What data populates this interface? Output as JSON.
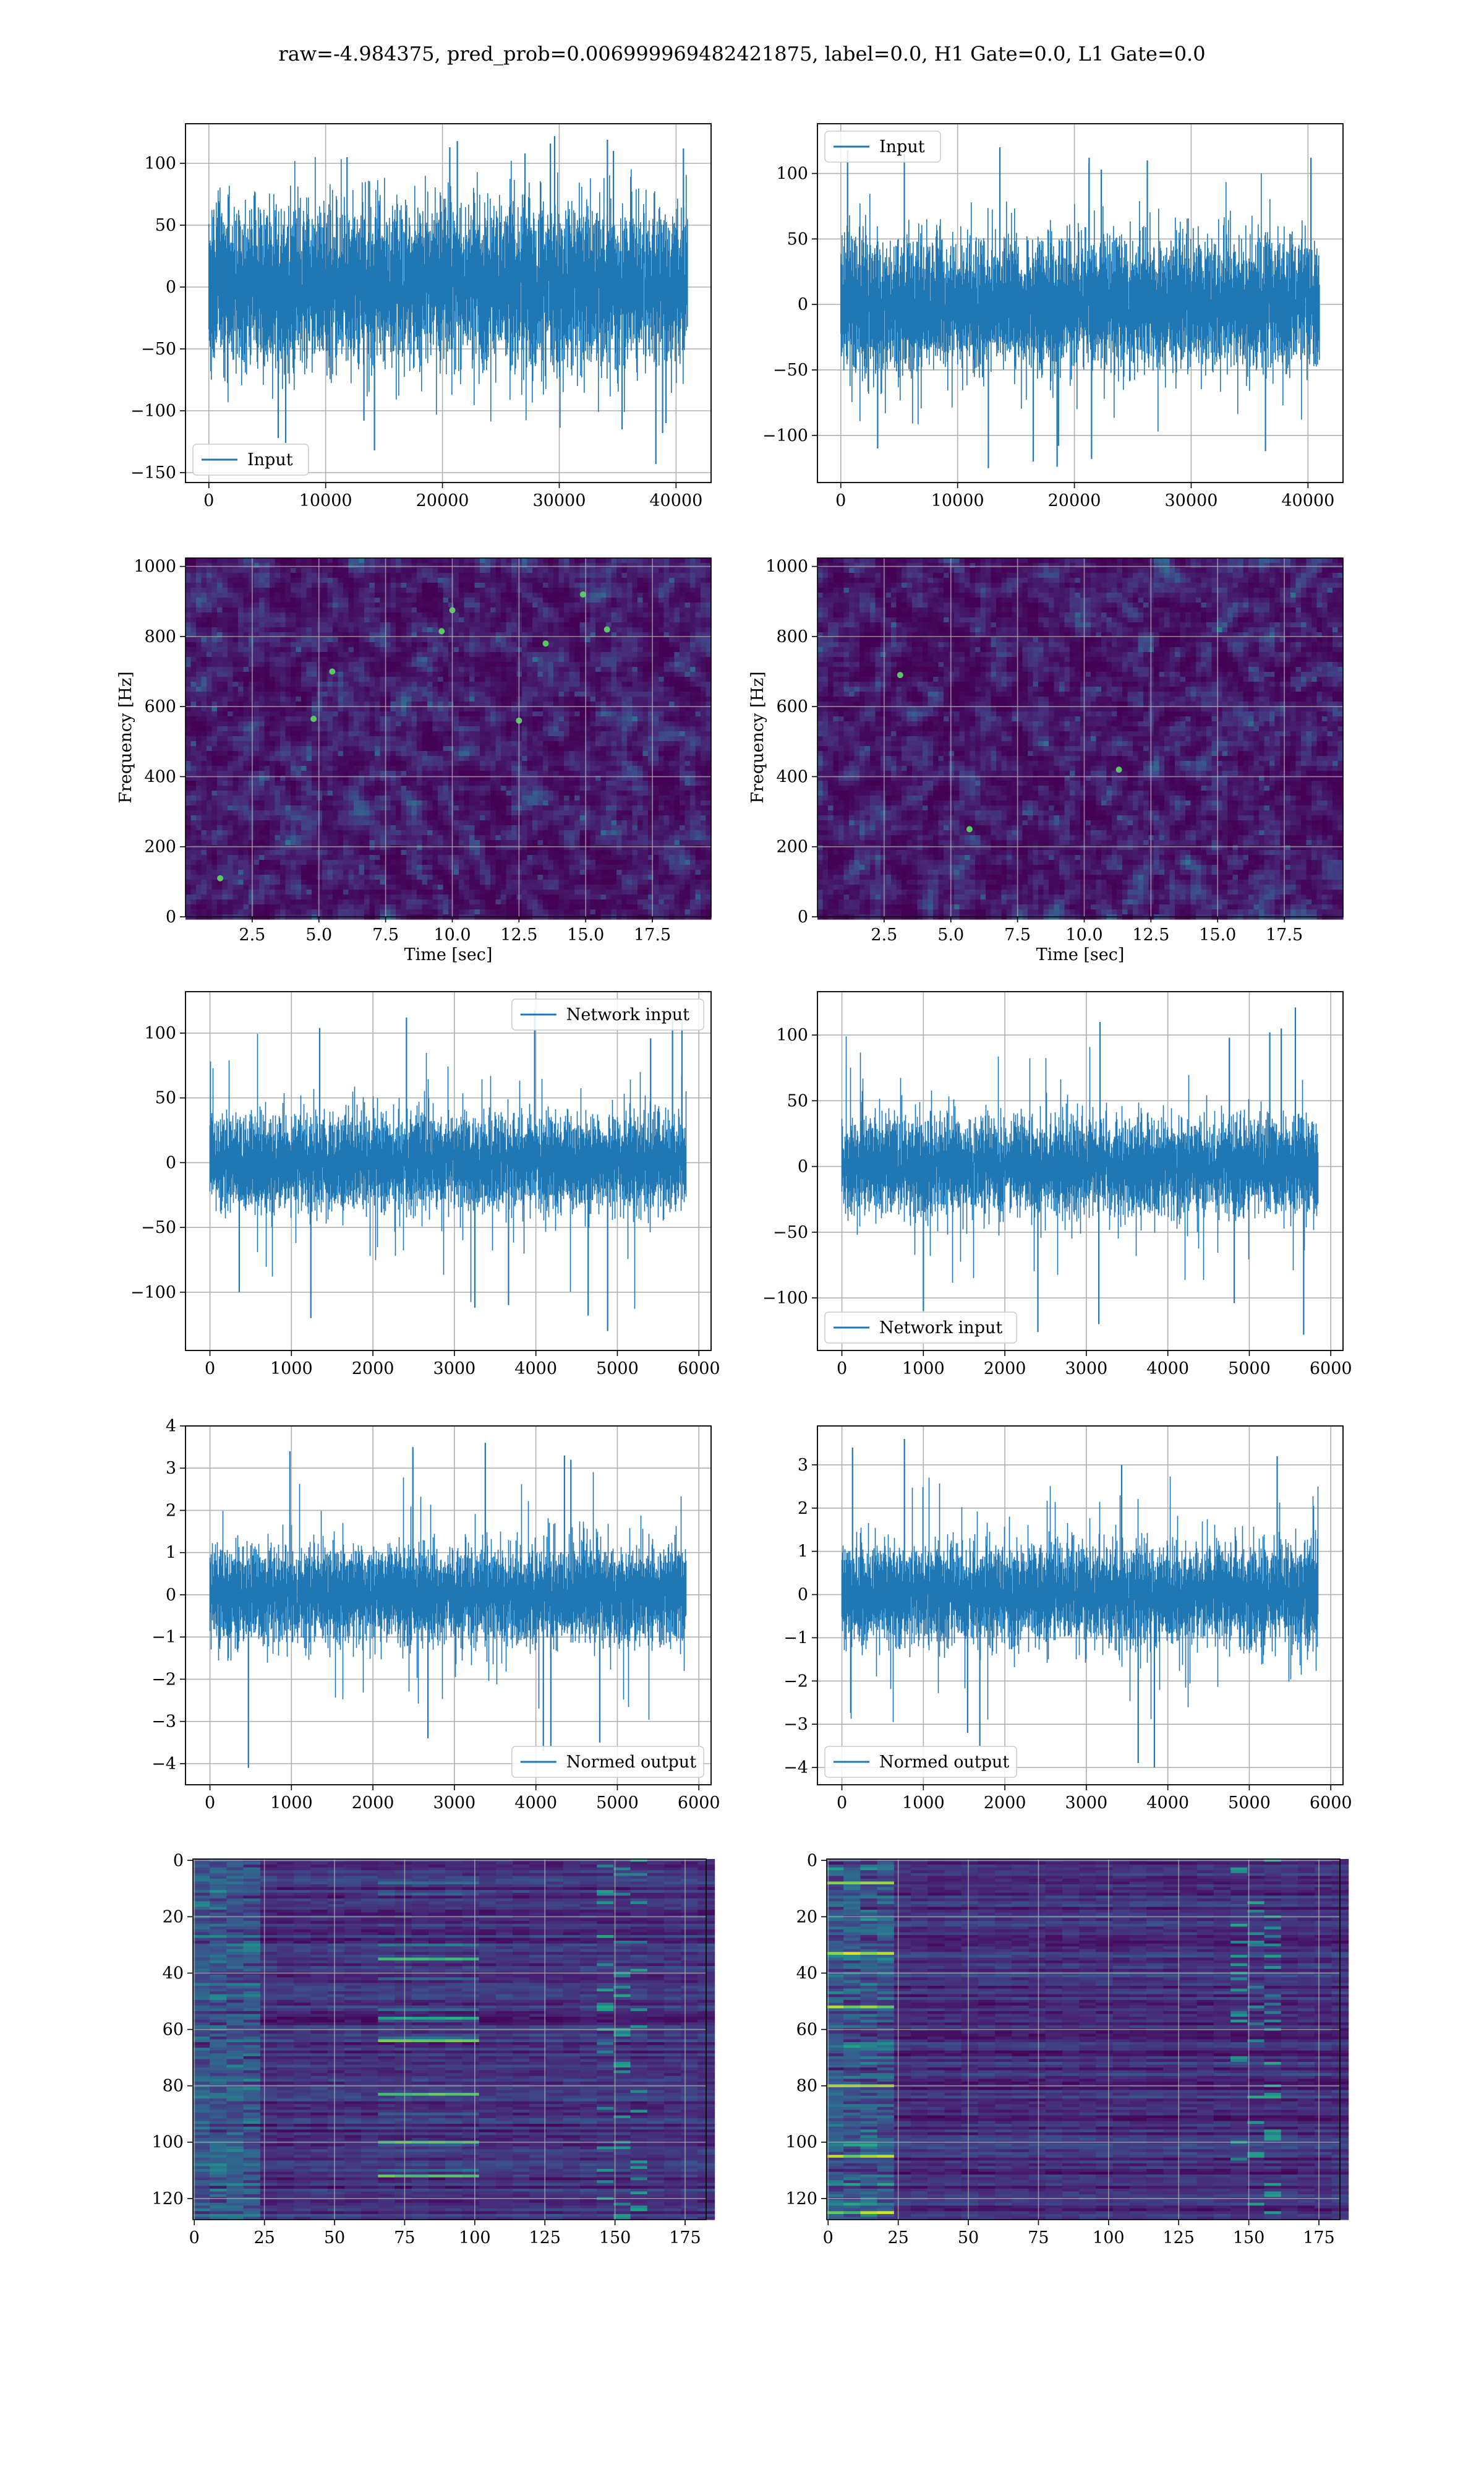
{
  "figure": {
    "title": "raw=-4.984375, pred_prob=0.006999969482421875, label=0.0, H1 Gate=0.0, L1 Gate=0.0"
  },
  "colors": {
    "line": "#1f77b4",
    "grid": "#b0b0b0",
    "viridis_dark": "#440154",
    "viridis_mid": "#21918c",
    "viridis_bright": "#fde725"
  },
  "chart_data": [
    {
      "id": "h1-input",
      "type": "line",
      "title": "",
      "xlabel": "",
      "ylabel": "",
      "xlim": [
        -2000,
        43000
      ],
      "ylim": [
        -158,
        132
      ],
      "xticks": [
        0,
        10000,
        20000,
        30000,
        40000
      ],
      "xtick_labels": [
        "0",
        "10000",
        "20000",
        "30000",
        "40000"
      ],
      "yticks": [
        -150,
        -100,
        -50,
        0,
        50,
        100
      ],
      "ytick_labels": [
        "−150",
        "−100",
        "−50",
        "0",
        "50",
        "100"
      ],
      "grid": true,
      "legend": {
        "placement": "lower-left",
        "entries": [
          "Input"
        ]
      },
      "series": [
        {
          "name": "Input",
          "x_range": [
            0,
            40960
          ],
          "envelope": {
            "core_abs": 72,
            "max": 122,
            "min": -143
          },
          "peak_values": [
            105,
            122,
            118,
            110,
            112,
            119,
            116,
            108,
            113,
            -108,
            -122,
            -143,
            -132,
            -115,
            -118,
            -126,
            -110
          ]
        }
      ]
    },
    {
      "id": "l1-input",
      "type": "line",
      "title": "",
      "xlabel": "",
      "ylabel": "",
      "xlim": [
        -2000,
        43000
      ],
      "ylim": [
        -136,
        138
      ],
      "xticks": [
        0,
        10000,
        20000,
        30000,
        40000
      ],
      "xtick_labels": [
        "0",
        "10000",
        "20000",
        "30000",
        "40000"
      ],
      "yticks": [
        -100,
        -50,
        0,
        50,
        100
      ],
      "ytick_labels": [
        "−100",
        "−50",
        "0",
        "50",
        "100"
      ],
      "grid": true,
      "legend": {
        "placement": "upper-left",
        "entries": [
          "Input"
        ]
      },
      "series": [
        {
          "name": "Input",
          "x_range": [
            0,
            40960
          ],
          "envelope": {
            "core_abs": 55,
            "max": 120,
            "min": -125
          },
          "peak_values": [
            110,
            112,
            115,
            120,
            108,
            103,
            118,
            112,
            -110,
            -124,
            -125,
            -118,
            -112,
            -120,
            -108
          ]
        }
      ]
    },
    {
      "id": "h1-spectrogram",
      "type": "heatmap",
      "title": "",
      "xlabel": "Time [sec]",
      "ylabel": "Frequency [Hz]",
      "xlim": [
        0,
        19.7
      ],
      "ylim": [
        0,
        1024
      ],
      "xticks": [
        2.5,
        5.0,
        7.5,
        10.0,
        12.5,
        15.0,
        17.5
      ],
      "xtick_labels": [
        "2.5",
        "5.0",
        "7.5",
        "10.0",
        "12.5",
        "15.0",
        "17.5"
      ],
      "yticks": [
        0,
        200,
        400,
        600,
        800,
        1000
      ],
      "ytick_labels": [
        "0",
        "200",
        "400",
        "600",
        "800",
        "1000"
      ],
      "grid": true,
      "colormap": "viridis",
      "hot_spots": [
        [
          14.9,
          920
        ],
        [
          10.0,
          875
        ],
        [
          9.6,
          815
        ],
        [
          4.8,
          565
        ],
        [
          12.5,
          560
        ],
        [
          13.5,
          780
        ],
        [
          1.3,
          110
        ],
        [
          15.8,
          820
        ],
        [
          5.5,
          700
        ]
      ]
    },
    {
      "id": "l1-spectrogram",
      "type": "heatmap",
      "title": "",
      "xlabel": "Time [sec]",
      "ylabel": "Frequency [Hz]",
      "xlim": [
        0,
        19.7
      ],
      "ylim": [
        0,
        1024
      ],
      "xticks": [
        2.5,
        5.0,
        7.5,
        10.0,
        12.5,
        15.0,
        17.5
      ],
      "xtick_labels": [
        "2.5",
        "5.0",
        "7.5",
        "10.0",
        "12.5",
        "15.0",
        "17.5"
      ],
      "yticks": [
        0,
        200,
        400,
        600,
        800,
        1000
      ],
      "ytick_labels": [
        "0",
        "200",
        "400",
        "600",
        "800",
        "1000"
      ],
      "grid": true,
      "colormap": "viridis",
      "hot_spots": [
        [
          5.7,
          250
        ],
        [
          11.3,
          420
        ],
        [
          3.1,
          690
        ]
      ]
    },
    {
      "id": "h1-network-input",
      "type": "line",
      "title": "",
      "xlabel": "",
      "ylabel": "",
      "xlim": [
        -300,
        6150
      ],
      "ylim": [
        -145,
        132
      ],
      "xticks": [
        0,
        1000,
        2000,
        3000,
        4000,
        5000,
        6000
      ],
      "xtick_labels": [
        "0",
        "1000",
        "2000",
        "3000",
        "4000",
        "5000",
        "6000"
      ],
      "yticks": [
        -100,
        -50,
        0,
        50,
        100
      ],
      "ytick_labels": [
        "−100",
        "−50",
        "0",
        "50",
        "100"
      ],
      "grid": true,
      "legend": {
        "placement": "upper-right",
        "entries": [
          "Network input"
        ]
      },
      "series": [
        {
          "name": "Network input",
          "x_range": [
            0,
            5840
          ],
          "envelope": {
            "core_abs": 40,
            "max": 118,
            "min": -130
          },
          "peak_values": [
            108,
            118,
            116,
            104,
            112,
            96,
            -130,
            -120,
            -118,
            -112,
            -110,
            -100
          ]
        }
      ]
    },
    {
      "id": "l1-network-input",
      "type": "line",
      "title": "",
      "xlabel": "",
      "ylabel": "",
      "xlim": [
        -300,
        6150
      ],
      "ylim": [
        -140,
        133
      ],
      "xticks": [
        0,
        1000,
        2000,
        3000,
        4000,
        5000,
        6000
      ],
      "xtick_labels": [
        "0",
        "1000",
        "2000",
        "3000",
        "4000",
        "5000",
        "6000"
      ],
      "yticks": [
        -100,
        -50,
        0,
        50,
        100
      ],
      "ytick_labels": [
        "−100",
        "−50",
        "0",
        "50",
        "100"
      ],
      "grid": true,
      "legend": {
        "placement": "lower-left",
        "entries": [
          "Network input"
        ]
      },
      "series": [
        {
          "name": "Network input",
          "x_range": [
            0,
            5840
          ],
          "envelope": {
            "core_abs": 40,
            "max": 121,
            "min": -128
          },
          "peak_values": [
            121,
            110,
            105,
            102,
            98,
            -128,
            -126,
            -120,
            -110,
            -104
          ]
        }
      ]
    },
    {
      "id": "h1-normed-output",
      "type": "line",
      "title": "",
      "xlabel": "",
      "ylabel": "",
      "xlim": [
        -300,
        6150
      ],
      "ylim": [
        -4.5,
        4.0
      ],
      "xticks": [
        0,
        1000,
        2000,
        3000,
        4000,
        5000,
        6000
      ],
      "xtick_labels": [
        "0",
        "1000",
        "2000",
        "3000",
        "4000",
        "5000",
        "6000"
      ],
      "yticks": [
        -4,
        -3,
        -2,
        -1,
        0,
        1,
        2,
        3,
        4
      ],
      "ytick_labels": [
        "−4",
        "−3",
        "−2",
        "−1",
        "0",
        "1",
        "2",
        "3",
        "4"
      ],
      "grid": true,
      "legend": {
        "placement": "lower-right",
        "entries": [
          "Normed output"
        ]
      },
      "series": [
        {
          "name": "Normed output",
          "x_range": [
            0,
            5840
          ],
          "envelope": {
            "core_abs": 1.25,
            "max": 3.6,
            "min": -4.1
          },
          "peak_values": [
            3.5,
            3.6,
            3.4,
            3.3,
            3.2,
            -4.1,
            -3.7,
            -3.6,
            -3.5,
            -3.4
          ]
        }
      ]
    },
    {
      "id": "l1-normed-output",
      "type": "line",
      "title": "",
      "xlabel": "",
      "ylabel": "",
      "xlim": [
        -300,
        6150
      ],
      "ylim": [
        -4.4,
        3.9
      ],
      "xticks": [
        0,
        1000,
        2000,
        3000,
        4000,
        5000,
        6000
      ],
      "xtick_labels": [
        "0",
        "1000",
        "2000",
        "3000",
        "4000",
        "5000",
        "6000"
      ],
      "yticks": [
        -4,
        -3,
        -2,
        -1,
        0,
        1,
        2,
        3
      ],
      "ytick_labels": [
        "−4",
        "−3",
        "−2",
        "−1",
        "0",
        "1",
        "2",
        "3"
      ],
      "grid": true,
      "legend": {
        "placement": "lower-left",
        "entries": [
          "Normed output"
        ]
      },
      "series": [
        {
          "name": "Normed output",
          "x_range": [
            0,
            5840
          ],
          "envelope": {
            "core_abs": 1.25,
            "max": 3.6,
            "min": -4.0
          },
          "peak_values": [
            3.6,
            3.4,
            3.2,
            3.0,
            -4.0,
            -3.9,
            -3.5,
            -3.2
          ]
        }
      ]
    },
    {
      "id": "h1-feature-map",
      "type": "heatmap",
      "title": "",
      "xlabel": "",
      "ylabel": "",
      "xlim": [
        -0.5,
        182.5
      ],
      "ylim": [
        127.5,
        -0.5
      ],
      "xticks": [
        0,
        25,
        50,
        75,
        100,
        125,
        150,
        175
      ],
      "xtick_labels": [
        "0",
        "25",
        "50",
        "75",
        "100",
        "125",
        "150",
        "175"
      ],
      "yticks": [
        0,
        20,
        40,
        60,
        80,
        100,
        120
      ],
      "ytick_labels": [
        "0",
        "20",
        "40",
        "60",
        "80",
        "100",
        "120"
      ],
      "grid": true,
      "colormap": "viridis",
      "bright_rows": [
        35,
        56,
        64,
        83,
        100,
        112
      ],
      "bright_col_range": [
        65,
        100
      ]
    },
    {
      "id": "l1-feature-map",
      "type": "heatmap",
      "title": "",
      "xlabel": "",
      "ylabel": "",
      "xlim": [
        -0.5,
        182.5
      ],
      "ylim": [
        127.5,
        -0.5
      ],
      "xticks": [
        0,
        25,
        50,
        75,
        100,
        125,
        150,
        175
      ],
      "xtick_labels": [
        "0",
        "25",
        "50",
        "75",
        "100",
        "125",
        "150",
        "175"
      ],
      "yticks": [
        0,
        20,
        40,
        60,
        80,
        100,
        120
      ],
      "ytick_labels": [
        "0",
        "20",
        "40",
        "60",
        "80",
        "100",
        "120"
      ],
      "grid": true,
      "colormap": "viridis",
      "bright_rows": [
        8,
        33,
        52,
        80,
        105,
        125
      ],
      "bright_col_range": [
        0,
        20
      ]
    }
  ]
}
